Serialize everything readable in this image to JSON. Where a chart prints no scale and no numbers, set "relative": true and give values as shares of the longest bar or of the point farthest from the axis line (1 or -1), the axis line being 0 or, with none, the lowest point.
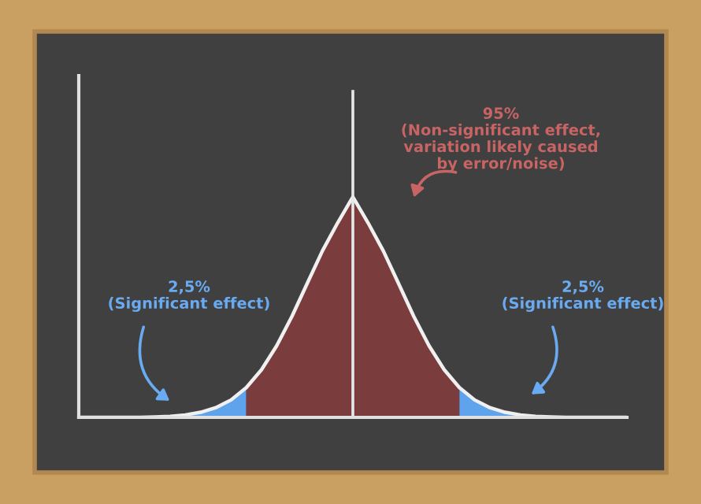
{
  "chart_data": {
    "type": "area",
    "relative": true,
    "categories": [
      null,
      null,
      null,
      null,
      null,
      null,
      null,
      null,
      null,
      null,
      null,
      null,
      null,
      null,
      null,
      null,
      null,
      null,
      null,
      null,
      null,
      null,
      null,
      null,
      null,
      null,
      null,
      null,
      null,
      null,
      null,
      null,
      null,
      null,
      null,
      null,
      null
    ],
    "series": [
      {
        "color": "#5fa3ec",
        "values": [
          null,
          null,
          null,
          null,
          null,
          0.002,
          0.005,
          0.011,
          0.023,
          0.044,
          0.079,
          0.135,
          null,
          null,
          null,
          null,
          null,
          null,
          null,
          null,
          null,
          null,
          null,
          null,
          null,
          null,
          null,
          null,
          null,
          null,
          null,
          null,
          null,
          null,
          null,
          null,
          null
        ]
      },
      {
        "color": "#7a3c3c",
        "values": [
          null,
          null,
          null,
          null,
          null,
          null,
          null,
          null,
          null,
          null,
          null,
          0.135,
          0.216,
          0.325,
          0.458,
          0.607,
          0.755,
          0.882,
          1,
          0.882,
          0.755,
          0.607,
          0.458,
          0.325,
          0.216,
          0.135,
          null,
          null,
          null,
          null,
          null,
          null,
          null,
          null,
          null,
          null,
          null
        ]
      },
      {
        "color": "#5fa3ec",
        "values": [
          null,
          null,
          null,
          null,
          null,
          null,
          null,
          null,
          null,
          null,
          null,
          null,
          null,
          null,
          null,
          null,
          null,
          null,
          null,
          null,
          null,
          null,
          null,
          null,
          null,
          0.135,
          0.079,
          0.044,
          0.023,
          0.011,
          0.005,
          0.002,
          null,
          null,
          null,
          null,
          null
        ]
      },
      {
        "type": "line",
        "color": "#f0f0f0",
        "values": [
          0,
          0,
          0,
          0,
          0,
          0.002,
          0.005,
          0.011,
          0.023,
          0.044,
          0.079,
          0.135,
          0.216,
          0.325,
          0.458,
          0.607,
          0.755,
          0.882,
          1,
          0.882,
          0.755,
          0.607,
          0.458,
          0.325,
          0.216,
          0.135,
          0.079,
          0.044,
          0.023,
          0.011,
          0.005,
          0.002,
          0,
          0,
          0,
          0,
          0
        ]
      }
    ],
    "annotations": [
      "95%\n(Non-significant effect,\nvariation likely caused\nby error/noise)",
      "2,5%\n(Significant effect)",
      "2,5%\n(Significant effect)"
    ]
  }
}
